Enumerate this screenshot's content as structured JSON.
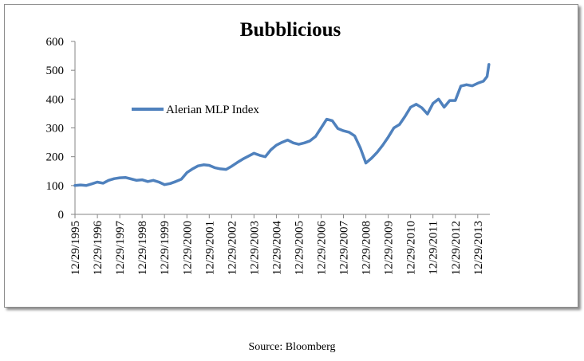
{
  "source": "Source: Bloomberg",
  "chart_data": {
    "type": "line",
    "title": "Bubblicious",
    "xlabel": "",
    "ylabel": "",
    "ylim": [
      0,
      600
    ],
    "yticks": [
      0,
      100,
      200,
      300,
      400,
      500,
      600
    ],
    "xticks": [
      "12/29/1995",
      "12/29/1996",
      "12/29/1997",
      "12/29/1998",
      "12/29/1999",
      "12/29/2000",
      "12/29/2001",
      "12/29/2002",
      "12/29/2003",
      "12/29/2004",
      "12/29/2005",
      "12/29/2006",
      "12/29/2007",
      "12/29/2008",
      "12/29/2009",
      "12/29/2010",
      "12/29/2011",
      "12/29/2012",
      "12/29/2013"
    ],
    "legend_position": "left, inside plot area",
    "grid": false,
    "series": [
      {
        "name": "Alerian MLP Index",
        "color": "#4f81bd",
        "points": [
          [
            "1995-12-29",
            100
          ],
          [
            "1996-03-29",
            102
          ],
          [
            "1996-06-28",
            100
          ],
          [
            "1996-09-30",
            106
          ],
          [
            "1996-12-27",
            112
          ],
          [
            "1997-03-31",
            108
          ],
          [
            "1997-06-30",
            118
          ],
          [
            "1997-09-30",
            124
          ],
          [
            "1997-12-29",
            127
          ],
          [
            "1998-03-31",
            128
          ],
          [
            "1998-06-30",
            123
          ],
          [
            "1998-09-30",
            118
          ],
          [
            "1998-12-29",
            120
          ],
          [
            "1999-03-31",
            114
          ],
          [
            "1999-06-30",
            118
          ],
          [
            "1999-09-30",
            112
          ],
          [
            "1999-12-29",
            103
          ],
          [
            "2000-03-31",
            107
          ],
          [
            "2000-06-30",
            114
          ],
          [
            "2000-09-29",
            122
          ],
          [
            "2000-12-29",
            145
          ],
          [
            "2001-03-30",
            158
          ],
          [
            "2001-06-29",
            168
          ],
          [
            "2001-09-28",
            172
          ],
          [
            "2001-12-28",
            170
          ],
          [
            "2002-03-28",
            162
          ],
          [
            "2002-06-28",
            158
          ],
          [
            "2002-09-30",
            156
          ],
          [
            "2002-12-30",
            167
          ],
          [
            "2003-03-31",
            180
          ],
          [
            "2003-06-30",
            192
          ],
          [
            "2003-09-30",
            202
          ],
          [
            "2003-12-29",
            212
          ],
          [
            "2004-03-31",
            205
          ],
          [
            "2004-06-30",
            200
          ],
          [
            "2004-09-30",
            224
          ],
          [
            "2004-12-29",
            240
          ],
          [
            "2005-03-31",
            250
          ],
          [
            "2005-06-30",
            258
          ],
          [
            "2005-09-30",
            248
          ],
          [
            "2005-12-29",
            243
          ],
          [
            "2006-03-31",
            248
          ],
          [
            "2006-06-30",
            255
          ],
          [
            "2006-09-29",
            270
          ],
          [
            "2006-12-29",
            300
          ],
          [
            "2007-03-30",
            330
          ],
          [
            "2007-06-29",
            325
          ],
          [
            "2007-09-28",
            298
          ],
          [
            "2007-12-28",
            290
          ],
          [
            "2008-03-31",
            285
          ],
          [
            "2008-06-30",
            272
          ],
          [
            "2008-09-30",
            230
          ],
          [
            "2008-12-29",
            178
          ],
          [
            "2009-03-31",
            195
          ],
          [
            "2009-06-30",
            215
          ],
          [
            "2009-09-30",
            240
          ],
          [
            "2009-12-29",
            268
          ],
          [
            "2010-03-31",
            300
          ],
          [
            "2010-06-30",
            312
          ],
          [
            "2010-09-30",
            340
          ],
          [
            "2010-12-29",
            372
          ],
          [
            "2011-03-31",
            382
          ],
          [
            "2011-06-30",
            370
          ],
          [
            "2011-09-30",
            348
          ],
          [
            "2011-12-29",
            385
          ],
          [
            "2012-03-30",
            400
          ],
          [
            "2012-06-29",
            372
          ],
          [
            "2012-09-28",
            395
          ],
          [
            "2012-12-28",
            395
          ],
          [
            "2013-03-28",
            445
          ],
          [
            "2013-06-28",
            450
          ],
          [
            "2013-09-30",
            446
          ],
          [
            "2013-12-30",
            455
          ],
          [
            "2014-03-31",
            462
          ],
          [
            "2014-05-30",
            478
          ],
          [
            "2014-06-30",
            520
          ]
        ]
      }
    ]
  }
}
